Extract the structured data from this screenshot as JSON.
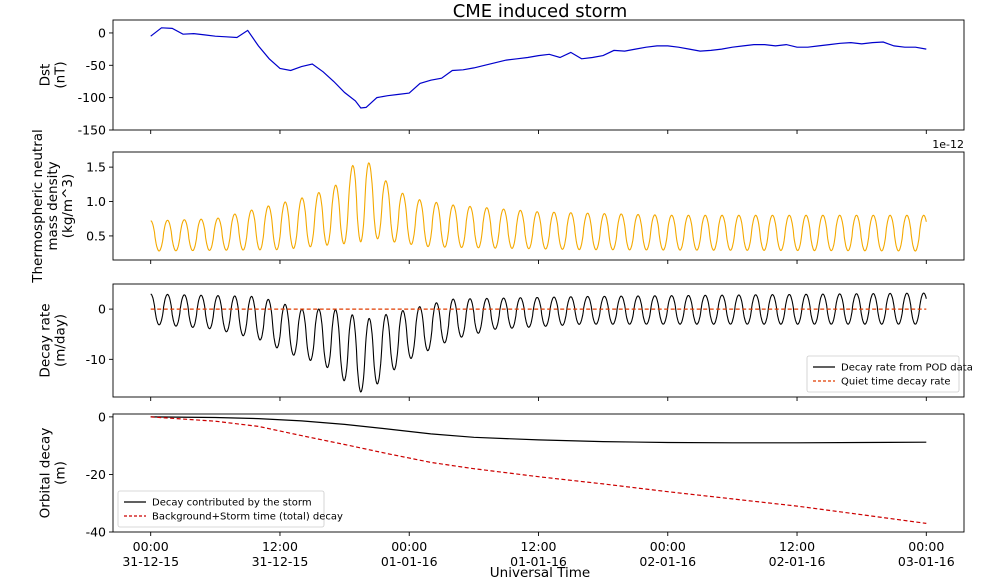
{
  "chart_data": {
    "type": "line",
    "title": "CME induced storm",
    "xlabel": "Universal Time",
    "x_ticks": [
      {
        "hours": 0,
        "time": "00:00",
        "date": "31-12-15"
      },
      {
        "hours": 12,
        "time": "12:00",
        "date": "31-12-15"
      },
      {
        "hours": 24,
        "time": "00:00",
        "date": "01-01-16"
      },
      {
        "hours": 36,
        "time": "12:00",
        "date": "01-01-16"
      },
      {
        "hours": 48,
        "time": "00:00",
        "date": "02-01-16"
      },
      {
        "hours": 60,
        "time": "12:00",
        "date": "02-01-16"
      },
      {
        "hours": 72,
        "time": "00:00",
        "date": "03-01-16"
      }
    ],
    "xlim": [
      -3.5,
      75.5
    ],
    "panels": [
      {
        "id": "dst",
        "ylabel": [
          "Dst",
          "(nT)"
        ],
        "ylim": [
          -150,
          20
        ],
        "yticks": [
          0,
          -50,
          -100,
          -150
        ],
        "series": [
          {
            "color": "#0000cc",
            "x": [
              0,
              1,
              2,
              3,
              4,
              5,
              6,
              7,
              8,
              9,
              10,
              11,
              12,
              13,
              14,
              15,
              16,
              17,
              18,
              19,
              19.5,
              20,
              21,
              22,
              23,
              24,
              25,
              26,
              27,
              28,
              29,
              30,
              31,
              32,
              33,
              34,
              35,
              36,
              37,
              38,
              39,
              40,
              41,
              42,
              43,
              44,
              45,
              46,
              47,
              48,
              49,
              50,
              51,
              52,
              53,
              54,
              55,
              56,
              57,
              58,
              59,
              60,
              61,
              62,
              63,
              64,
              65,
              66,
              67,
              68,
              69,
              70,
              71,
              72
            ],
            "y": [
              -5,
              8,
              7,
              -2,
              -1,
              -3,
              -5,
              -6,
              -7,
              4,
              -20,
              -40,
              -55,
              -58,
              -52,
              -48,
              -60,
              -75,
              -92,
              -105,
              -116,
              -115,
              -100,
              -97,
              -95,
              -93,
              -78,
              -73,
              -70,
              -58,
              -57,
              -54,
              -50,
              -46,
              -42,
              -40,
              -38,
              -35,
              -33,
              -38,
              -30,
              -40,
              -38,
              -35,
              -27,
              -28,
              -25,
              -22,
              -20,
              -20,
              -22,
              -25,
              -28,
              -27,
              -25,
              -22,
              -20,
              -18,
              -18,
              -20,
              -18,
              -22,
              -22,
              -20,
              -18,
              -16,
              -15,
              -17,
              -15,
              -14,
              -20,
              -22,
              -22,
              -25
            ]
          }
        ]
      },
      {
        "id": "density",
        "ylabel": [
          "Thermospheric neutral",
          "mass density",
          "(kg/m^3)"
        ],
        "ylim": [
          0.15,
          1.72
        ],
        "yticks": [
          0.5,
          1.0,
          1.5
        ],
        "ytick_labels": [
          "0.5",
          "1.0",
          "1.5"
        ],
        "offset_label": "1e-12",
        "series": [
          {
            "color": "#f4a900",
            "oscillation": {
              "period_hours": 1.56,
              "x_end": 72,
              "trough": [
                [
                  0,
                  0.28
                ],
                [
                  12,
                  0.3
                ],
                [
                  16,
                  0.36
                ],
                [
                  19,
                  0.4
                ],
                [
                  21,
                  0.46
                ],
                [
                  23,
                  0.4
                ],
                [
                  26,
                  0.34
                ],
                [
                  40,
                  0.3
                ],
                [
                  72,
                  0.28
                ]
              ],
              "peak": [
                [
                  0,
                  0.72
                ],
                [
                  6,
                  0.75
                ],
                [
                  10,
                  0.9
                ],
                [
                  14,
                  1.05
                ],
                [
                  16,
                  1.15
                ],
                [
                  18,
                  1.3
                ],
                [
                  19,
                  1.6
                ],
                [
                  20,
                  1.62
                ],
                [
                  21,
                  1.4
                ],
                [
                  22,
                  1.28
                ],
                [
                  24,
                  1.05
                ],
                [
                  28,
                  0.95
                ],
                [
                  36,
                  0.85
                ],
                [
                  48,
                  0.8
                ],
                [
                  60,
                  0.8
                ],
                [
                  72,
                  0.8
                ]
              ]
            }
          }
        ]
      },
      {
        "id": "decay_rate",
        "ylabel": [
          "Decay rate",
          "(m/day)"
        ],
        "ylim": [
          -17.5,
          5
        ],
        "yticks": [
          0,
          -10
        ],
        "series": [
          {
            "name": "Decay rate from POD data",
            "color": "#000000",
            "oscillation": {
              "period_hours": 1.56,
              "x_end": 72,
              "peak": [
                [
                  0,
                  3
                ],
                [
                  10,
                  2.5
                ],
                [
                  14,
                  0
                ],
                [
                  17,
                  0
                ],
                [
                  20,
                  -2
                ],
                [
                  22,
                  -1
                ],
                [
                  24,
                  0
                ],
                [
                  28,
                  2
                ],
                [
                  40,
                  2.5
                ],
                [
                  72,
                  3.2
                ]
              ],
              "trough": [
                [
                  0,
                  -3
                ],
                [
                  6,
                  -4
                ],
                [
                  10,
                  -6
                ],
                [
                  13,
                  -9
                ],
                [
                  16,
                  -11
                ],
                [
                  19,
                  -16
                ],
                [
                  20,
                  -17
                ],
                [
                  22,
                  -13
                ],
                [
                  24,
                  -10
                ],
                [
                  28,
                  -6
                ],
                [
                  32,
                  -4
                ],
                [
                  40,
                  -3
                ],
                [
                  72,
                  -3
                ]
              ]
            }
          },
          {
            "name": "Quiet time decay rate",
            "color": "#e03c00",
            "dashed": true,
            "x": [
              0,
              72
            ],
            "y": [
              0,
              0
            ]
          }
        ],
        "legend": "bottom-right"
      },
      {
        "id": "orbital_decay",
        "ylabel": [
          "Orbital decay",
          "(m)"
        ],
        "ylim": [
          -40,
          1
        ],
        "yticks": [
          0,
          -20,
          -40
        ],
        "series": [
          {
            "name": "Decay contributed by the storm",
            "color": "#000000",
            "x": [
              0,
              6,
              10,
              14,
              18,
              22,
              26,
              30,
              36,
              42,
              48,
              54,
              60,
              66,
              72
            ],
            "y": [
              0,
              -0.2,
              -0.6,
              -1.4,
              -2.6,
              -4.2,
              -5.9,
              -7.1,
              -8.0,
              -8.6,
              -8.9,
              -9.0,
              -9.0,
              -8.9,
              -8.8
            ]
          },
          {
            "name": "Background+Storm time (total) decay",
            "color": "#cc0000",
            "dashed": true,
            "x": [
              0,
              6,
              10,
              14,
              18,
              22,
              26,
              30,
              36,
              42,
              48,
              54,
              60,
              66,
              72
            ],
            "y": [
              0,
              -1.5,
              -3.3,
              -6.5,
              -9.6,
              -12.8,
              -15.8,
              -18.0,
              -20.8,
              -23.3,
              -26.0,
              -28.5,
              -31.0,
              -34.0,
              -37.0
            ]
          }
        ],
        "legend": "bottom-left"
      }
    ]
  }
}
